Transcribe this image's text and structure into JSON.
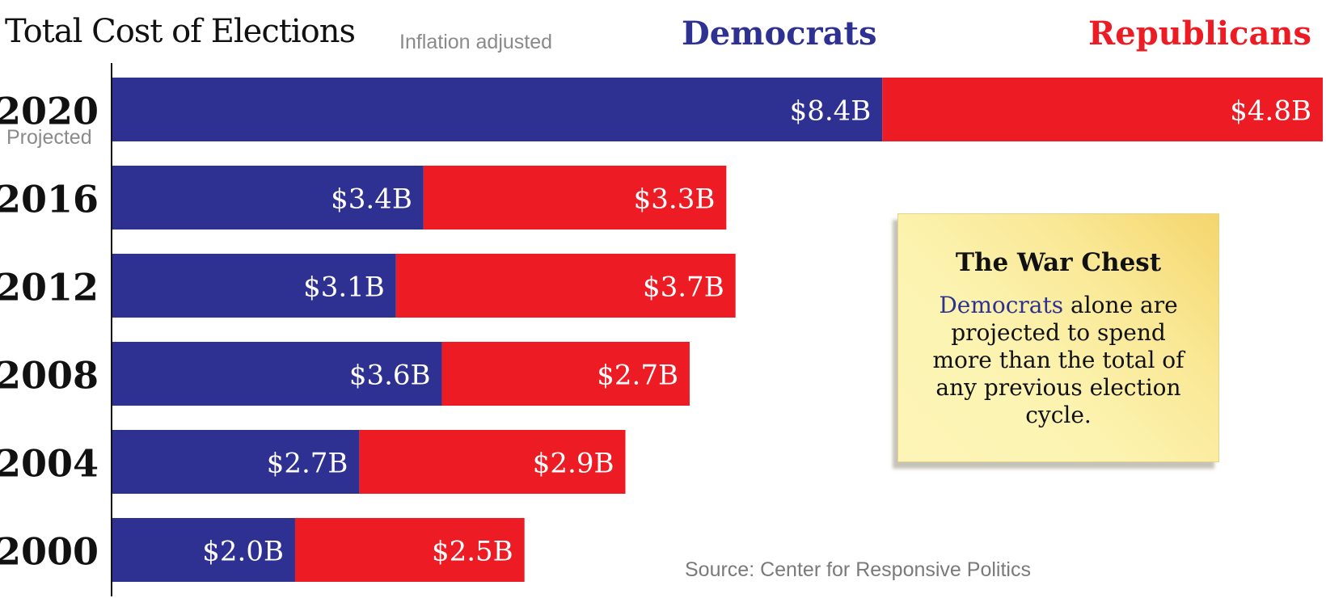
{
  "colors": {
    "democrats": "#2e3192",
    "republicans": "#ed1c24",
    "axis": "#111111",
    "label_text": "#ffffff"
  },
  "legend": {
    "democrats": "Democrats",
    "republicans": "Republicans"
  },
  "note": {
    "title": "The War Chest",
    "body_highlight": "Democrats",
    "body_rest": " alone are projected to spend more than the total of any previous election cycle."
  },
  "source": "Source: Center for Responsive Politics",
  "chart_data": {
    "type": "bar",
    "orientation": "horizontal",
    "stacked": true,
    "title": "Total Cost of Elections",
    "subtitle": "Inflation adjusted",
    "categories": [
      "2020",
      "2016",
      "2012",
      "2008",
      "2004",
      "2000"
    ],
    "category_notes": [
      "Projected",
      "",
      "",
      "",
      "",
      ""
    ],
    "series": [
      {
        "name": "Democrats",
        "values": [
          8.4,
          3.4,
          3.1,
          3.6,
          2.7,
          2.0
        ],
        "labels": [
          "$8.4B",
          "$3.4B",
          "$3.1B",
          "$3.6B",
          "$2.7B",
          "$2.0B"
        ]
      },
      {
        "name": "Republicans",
        "values": [
          4.8,
          3.3,
          3.7,
          2.7,
          2.9,
          2.5
        ],
        "labels": [
          "$4.8B",
          "$3.3B",
          "$3.7B",
          "$2.7B",
          "$2.9B",
          "$2.5B"
        ]
      }
    ],
    "xlim": [
      0,
      13.2
    ],
    "grid": false,
    "legend_position": "top"
  }
}
